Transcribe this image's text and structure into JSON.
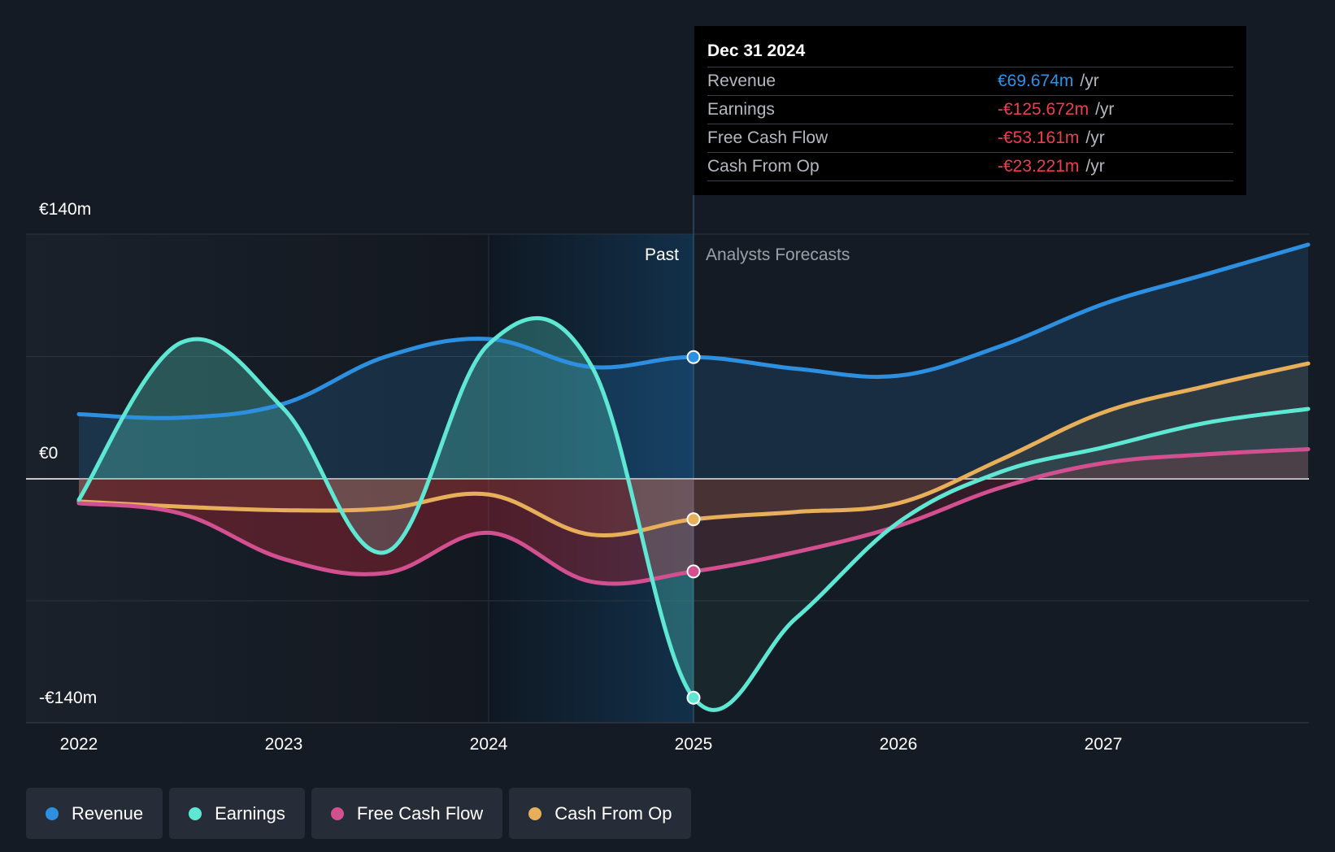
{
  "chart_data": {
    "type": "line",
    "title": "",
    "x": [
      2022.0,
      2022.5,
      2023.0,
      2023.5,
      2024.0,
      2024.5,
      2025.0,
      2026.0,
      2027.0,
      2028.0
    ],
    "ylim": [
      -140,
      140
    ],
    "ytick_labels": [
      "€140m",
      "€0",
      "-€140m"
    ],
    "xtick_labels": [
      "2022",
      "2023",
      "2024",
      "2025",
      "2026",
      "2027"
    ],
    "divider_year": 2025.0,
    "past_label": "Past",
    "forecast_label": "Analysts Forecasts",
    "series": [
      {
        "key": "revenue",
        "name": "Revenue",
        "color": "#2c8fe0",
        "points": [
          [
            2022.0,
            37
          ],
          [
            2022.5,
            35
          ],
          [
            2023.0,
            43
          ],
          [
            2023.5,
            70
          ],
          [
            2024.0,
            80
          ],
          [
            2024.5,
            64
          ],
          [
            2025.0,
            69.674
          ],
          [
            2025.5,
            63
          ],
          [
            2026.0,
            59
          ],
          [
            2026.5,
            76
          ],
          [
            2027.0,
            100
          ],
          [
            2027.5,
            117
          ],
          [
            2028.0,
            134
          ]
        ]
      },
      {
        "key": "earnings",
        "name": "Earnings",
        "color": "#5ee8d3",
        "points": [
          [
            2022.0,
            -12
          ],
          [
            2022.5,
            78
          ],
          [
            2023.0,
            40
          ],
          [
            2023.5,
            -42
          ],
          [
            2024.0,
            77
          ],
          [
            2024.5,
            65
          ],
          [
            2025.0,
            -125.672
          ],
          [
            2025.5,
            -80
          ],
          [
            2026.0,
            -25
          ],
          [
            2026.5,
            4
          ],
          [
            2027.0,
            18
          ],
          [
            2027.5,
            32
          ],
          [
            2028.0,
            40
          ]
        ]
      },
      {
        "key": "fcf",
        "name": "Free Cash Flow",
        "color": "#d24f90",
        "points": [
          [
            2022.0,
            -14
          ],
          [
            2022.5,
            -20
          ],
          [
            2023.0,
            -46
          ],
          [
            2023.5,
            -54
          ],
          [
            2024.0,
            -31
          ],
          [
            2024.5,
            -59
          ],
          [
            2025.0,
            -53.161
          ],
          [
            2025.5,
            -42
          ],
          [
            2026.0,
            -27
          ],
          [
            2026.5,
            -5
          ],
          [
            2027.0,
            9
          ],
          [
            2027.5,
            14
          ],
          [
            2028.0,
            17
          ]
        ]
      },
      {
        "key": "cfo",
        "name": "Cash From Op",
        "color": "#e8af5a",
        "points": [
          [
            2022.0,
            -13
          ],
          [
            2022.5,
            -16
          ],
          [
            2023.0,
            -18
          ],
          [
            2023.5,
            -17
          ],
          [
            2024.0,
            -9
          ],
          [
            2024.5,
            -32
          ],
          [
            2025.0,
            -23.221
          ],
          [
            2025.5,
            -19
          ],
          [
            2026.0,
            -14
          ],
          [
            2026.5,
            11
          ],
          [
            2027.0,
            38
          ],
          [
            2027.5,
            53
          ],
          [
            2028.0,
            66
          ]
        ]
      }
    ]
  },
  "tooltip": {
    "date": "Dec 31 2024",
    "unit": "/yr",
    "rows": [
      {
        "label": "Revenue",
        "value": "€69.674m",
        "color": "#2c93e8"
      },
      {
        "label": "Earnings",
        "value": "-€125.672m",
        "color": "#f03d4e"
      },
      {
        "label": "Free Cash Flow",
        "value": "-€53.161m",
        "color": "#f03d4e"
      },
      {
        "label": "Cash From Op",
        "value": "-€23.221m",
        "color": "#f03d4e"
      }
    ]
  },
  "legend": {
    "items": [
      {
        "label": "Revenue",
        "color": "#2c8fe0"
      },
      {
        "label": "Earnings",
        "color": "#5ee8d3"
      },
      {
        "label": "Free Cash Flow",
        "color": "#d24f90"
      },
      {
        "label": "Cash From Op",
        "color": "#e8af5a"
      }
    ]
  }
}
